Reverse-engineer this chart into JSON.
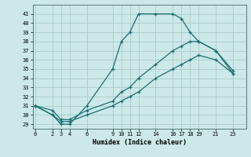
{
  "xlabel": "Humidex (Indice chaleur)",
  "bg_color": "#cce8e8",
  "line_color": "#1a7070",
  "grid_color": "#aacccc",
  "xticks": [
    0,
    2,
    3,
    4,
    6,
    9,
    10,
    11,
    12,
    14,
    16,
    17,
    18,
    19,
    21,
    23
  ],
  "yticks": [
    29,
    30,
    31,
    32,
    33,
    34,
    35,
    36,
    37,
    38,
    39,
    40,
    41
  ],
  "ylim": [
    28.5,
    42.0
  ],
  "xlim": [
    -0.3,
    24.5
  ],
  "line1_x": [
    0,
    2,
    3,
    4,
    6,
    9,
    10,
    11,
    12,
    14,
    16,
    17,
    18,
    19,
    21,
    23
  ],
  "line1_y": [
    31,
    30,
    29,
    29,
    31,
    35,
    38,
    39,
    41,
    41,
    41,
    40.5,
    39,
    38,
    37,
    34.5
  ],
  "line2_x": [
    0,
    2,
    3,
    4,
    6,
    9,
    10,
    11,
    12,
    14,
    16,
    17,
    18,
    19,
    21,
    23
  ],
  "line2_y": [
    31,
    30.5,
    29.5,
    29.5,
    30.5,
    31.5,
    32.5,
    33,
    34,
    35.5,
    37,
    37.5,
    38,
    38,
    37,
    34.8
  ],
  "line3_x": [
    0,
    2,
    3,
    4,
    6,
    9,
    10,
    11,
    12,
    14,
    16,
    17,
    18,
    19,
    21,
    23
  ],
  "line3_y": [
    31,
    30,
    29.3,
    29.3,
    30,
    31,
    31.5,
    32,
    32.5,
    34,
    35,
    35.5,
    36,
    36.5,
    36,
    34.5
  ]
}
